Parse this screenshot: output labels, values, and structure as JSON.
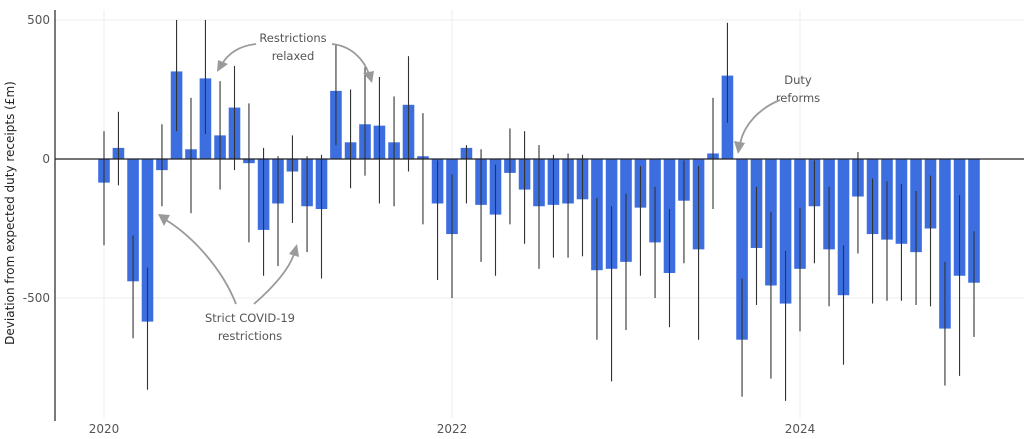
{
  "chart_data": {
    "type": "bar",
    "title": "",
    "xlabel": "",
    "ylabel": "Deviation from expected duty receipts (£m)",
    "xlim": [
      2019.8,
      2025.35
    ],
    "ylim": [
      -930,
      500
    ],
    "y_ticks": [
      500,
      0,
      -500
    ],
    "y_tick_labels": [
      "500",
      "0",
      "-500"
    ],
    "x_ticks": [
      2020,
      2022,
      2024
    ],
    "x_tick_labels": [
      "2020",
      "2022",
      "2024"
    ],
    "grid": "horizontal major lines",
    "legend": "none",
    "colors": {
      "bar": "#3d6ee0",
      "error_bar": "#333333",
      "annotation": "#9a9a9a"
    },
    "points": [
      {
        "x": 2020.0,
        "y": -85,
        "lo": -310,
        "hi": 100
      },
      {
        "x": 2020.083,
        "y": 40,
        "lo": -95,
        "hi": 170
      },
      {
        "x": 2020.167,
        "y": -440,
        "lo": -645,
        "hi": -275
      },
      {
        "x": 2020.25,
        "y": -585,
        "lo": -830,
        "hi": -390
      },
      {
        "x": 2020.333,
        "y": -40,
        "lo": -170,
        "hi": 125
      },
      {
        "x": 2020.417,
        "y": 315,
        "lo": 100,
        "hi": 500
      },
      {
        "x": 2020.5,
        "y": 35,
        "lo": -195,
        "hi": 220
      },
      {
        "x": 2020.583,
        "y": 290,
        "lo": 90,
        "hi": 500
      },
      {
        "x": 2020.667,
        "y": 85,
        "lo": -110,
        "hi": 280
      },
      {
        "x": 2020.75,
        "y": 185,
        "lo": -40,
        "hi": 335
      },
      {
        "x": 2020.833,
        "y": -15,
        "lo": -300,
        "hi": 200
      },
      {
        "x": 2020.917,
        "y": -255,
        "lo": -420,
        "hi": 40
      },
      {
        "x": 2021.0,
        "y": -160,
        "lo": -385,
        "hi": 10
      },
      {
        "x": 2021.083,
        "y": -45,
        "lo": -230,
        "hi": 85
      },
      {
        "x": 2021.167,
        "y": -170,
        "lo": -335,
        "hi": 10
      },
      {
        "x": 2021.25,
        "y": -180,
        "lo": -430,
        "hi": 15
      },
      {
        "x": 2021.333,
        "y": 245,
        "lo": 50,
        "hi": 410
      },
      {
        "x": 2021.417,
        "y": 60,
        "lo": -105,
        "hi": 250
      },
      {
        "x": 2021.5,
        "y": 125,
        "lo": -60,
        "hi": 330
      },
      {
        "x": 2021.583,
        "y": 120,
        "lo": -160,
        "hi": 295
      },
      {
        "x": 2021.667,
        "y": 60,
        "lo": -170,
        "hi": 225
      },
      {
        "x": 2021.75,
        "y": 195,
        "lo": -45,
        "hi": 370
      },
      {
        "x": 2021.833,
        "y": 10,
        "lo": -235,
        "hi": 165
      },
      {
        "x": 2021.917,
        "y": -160,
        "lo": -435,
        "hi": -5
      },
      {
        "x": 2022.0,
        "y": -270,
        "lo": -500,
        "hi": -55
      },
      {
        "x": 2022.083,
        "y": 40,
        "lo": -160,
        "hi": 50
      },
      {
        "x": 2022.167,
        "y": -165,
        "lo": -370,
        "hi": 35
      },
      {
        "x": 2022.25,
        "y": -200,
        "lo": -420,
        "hi": -20
      },
      {
        "x": 2022.333,
        "y": -50,
        "lo": -235,
        "hi": 110
      },
      {
        "x": 2022.417,
        "y": -110,
        "lo": -305,
        "hi": 100
      },
      {
        "x": 2022.5,
        "y": -170,
        "lo": -395,
        "hi": 50
      },
      {
        "x": 2022.583,
        "y": -165,
        "lo": -355,
        "hi": 15
      },
      {
        "x": 2022.667,
        "y": -160,
        "lo": -355,
        "hi": 20
      },
      {
        "x": 2022.75,
        "y": -145,
        "lo": -350,
        "hi": 15
      },
      {
        "x": 2022.833,
        "y": -400,
        "lo": -650,
        "hi": -140
      },
      {
        "x": 2022.917,
        "y": -395,
        "lo": -800,
        "hi": -170
      },
      {
        "x": 2023.0,
        "y": -370,
        "lo": -615,
        "hi": -125
      },
      {
        "x": 2023.083,
        "y": -175,
        "lo": -420,
        "hi": -25
      },
      {
        "x": 2023.167,
        "y": -300,
        "lo": -500,
        "hi": -100
      },
      {
        "x": 2023.25,
        "y": -410,
        "lo": -605,
        "hi": -180
      },
      {
        "x": 2023.333,
        "y": -150,
        "lo": -375,
        "hi": -5
      },
      {
        "x": 2023.417,
        "y": -325,
        "lo": -650,
        "hi": -25
      },
      {
        "x": 2023.5,
        "y": 20,
        "lo": -180,
        "hi": 220
      },
      {
        "x": 2023.583,
        "y": 300,
        "lo": 130,
        "hi": 490
      },
      {
        "x": 2023.667,
        "y": -650,
        "lo": -855,
        "hi": -430
      },
      {
        "x": 2023.75,
        "y": -320,
        "lo": -525,
        "hi": -100
      },
      {
        "x": 2023.833,
        "y": -455,
        "lo": -790,
        "hi": -190
      },
      {
        "x": 2023.917,
        "y": -520,
        "lo": -870,
        "hi": -330
      },
      {
        "x": 2024.0,
        "y": -395,
        "lo": -620,
        "hi": -175
      },
      {
        "x": 2024.083,
        "y": -170,
        "lo": -375,
        "hi": -5
      },
      {
        "x": 2024.167,
        "y": -325,
        "lo": -530,
        "hi": -100
      },
      {
        "x": 2024.25,
        "y": -490,
        "lo": -740,
        "hi": -310
      },
      {
        "x": 2024.333,
        "y": -135,
        "lo": -340,
        "hi": 25
      },
      {
        "x": 2024.417,
        "y": -270,
        "lo": -520,
        "hi": -70
      },
      {
        "x": 2024.5,
        "y": -290,
        "lo": -510,
        "hi": -80
      },
      {
        "x": 2024.583,
        "y": -305,
        "lo": -510,
        "hi": -90
      },
      {
        "x": 2024.667,
        "y": -335,
        "lo": -525,
        "hi": -115
      },
      {
        "x": 2024.75,
        "y": -250,
        "lo": -530,
        "hi": -60
      },
      {
        "x": 2024.833,
        "y": -610,
        "lo": -815,
        "hi": -370
      },
      {
        "x": 2024.917,
        "y": -420,
        "lo": -780,
        "hi": -130
      },
      {
        "x": 2025.0,
        "y": -445,
        "lo": -640,
        "hi": -260
      }
    ],
    "annotations": [
      {
        "id": "relaxed",
        "lines": [
          "Restrictions",
          "relaxed"
        ]
      },
      {
        "id": "strict",
        "lines": [
          "Strict COVID-19",
          "restrictions"
        ]
      },
      {
        "id": "reforms",
        "lines": [
          "Duty",
          "reforms"
        ]
      }
    ]
  }
}
